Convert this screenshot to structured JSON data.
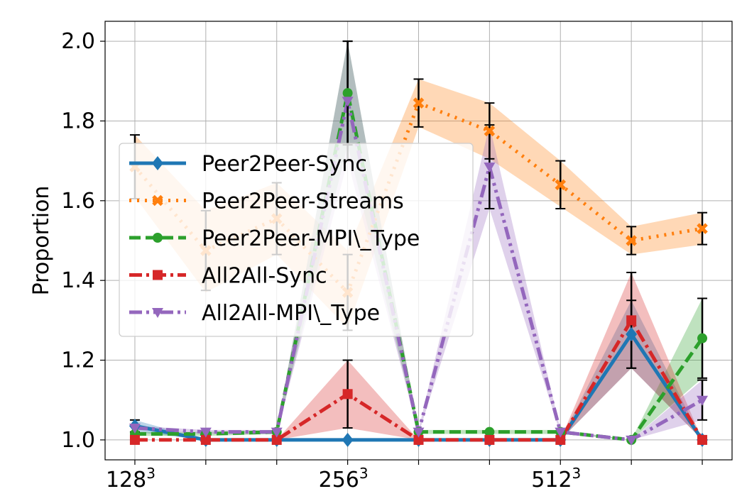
{
  "chart_data": {
    "type": "line",
    "ylabel": "Proportion",
    "xlabel": "",
    "ylim": [
      0.95,
      2.05
    ],
    "yticks": [
      1.0,
      1.2,
      1.4,
      1.6,
      1.8,
      2.0
    ],
    "grid": true,
    "legend_position": "upper-left",
    "x": [
      1,
      2,
      3,
      4,
      5,
      6,
      7,
      8,
      9
    ],
    "x_tick_labels": [
      {
        "x": 1,
        "base": "128",
        "exp": "3"
      },
      {
        "x": 2,
        "base": "",
        "exp": ""
      },
      {
        "x": 3,
        "base": "",
        "exp": ""
      },
      {
        "x": 4,
        "base": "256",
        "exp": "3"
      },
      {
        "x": 5,
        "base": "",
        "exp": ""
      },
      {
        "x": 6,
        "base": "",
        "exp": ""
      },
      {
        "x": 7,
        "base": "512",
        "exp": "3"
      },
      {
        "x": 8,
        "base": "",
        "exp": ""
      },
      {
        "x": 9,
        "base": "",
        "exp": ""
      }
    ],
    "series": [
      {
        "name": "Peer2Peer-Sync",
        "color": "#1f77b4",
        "marker": "diamond",
        "dash": "solid",
        "values": [
          1.035,
          1.0,
          1.0,
          1.0,
          1.0,
          1.0,
          1.0,
          1.265,
          1.0
        ],
        "band": [
          [
            1.02,
            1.05
          ],
          [
            1.0,
            1.0
          ],
          [
            1.0,
            1.0
          ],
          [
            1.0,
            1.0
          ],
          [
            1.0,
            1.0
          ],
          [
            1.0,
            1.0
          ],
          [
            1.0,
            1.0
          ],
          [
            1.18,
            1.35
          ],
          [
            1.0,
            1.0
          ]
        ],
        "err": [
          0.015,
          0,
          0,
          0,
          0,
          0,
          0,
          0.085,
          0
        ]
      },
      {
        "name": "Peer2Peer-Streams",
        "color": "#ff7f0e",
        "marker": "x",
        "dash": "dotted",
        "values": [
          1.685,
          1.475,
          1.555,
          1.37,
          1.845,
          1.775,
          1.64,
          1.5,
          1.53
        ],
        "band": [
          [
            1.61,
            1.765
          ],
          [
            1.37,
            1.575
          ],
          [
            1.465,
            1.645
          ],
          [
            1.28,
            1.475
          ],
          [
            1.785,
            1.905
          ],
          [
            1.705,
            1.845
          ],
          [
            1.585,
            1.7
          ],
          [
            1.465,
            1.535
          ],
          [
            1.49,
            1.57
          ]
        ],
        "err": [
          0.08,
          0.1,
          0.09,
          0.095,
          0.06,
          0.07,
          0.06,
          0.035,
          0.04
        ]
      },
      {
        "name": "Peer2Peer-MPI\\_Type",
        "color": "#2ca02c",
        "marker": "circle",
        "dash": "dashed",
        "values": [
          1.015,
          1.015,
          1.02,
          1.87,
          1.02,
          1.02,
          1.02,
          1.0,
          1.255
        ],
        "band": [
          [
            1.01,
            1.02
          ],
          [
            1.01,
            1.02
          ],
          [
            1.015,
            1.025
          ],
          [
            1.74,
            2.0
          ],
          [
            1.015,
            1.025
          ],
          [
            1.015,
            1.025
          ],
          [
            1.015,
            1.025
          ],
          [
            1.0,
            1.0
          ],
          [
            1.155,
            1.355
          ]
        ],
        "err": [
          0,
          0,
          0,
          0.13,
          0,
          0,
          0,
          0,
          0.1
        ]
      },
      {
        "name": "All2All-Sync",
        "color": "#d62728",
        "marker": "square",
        "dash": "dashdot",
        "values": [
          1.0,
          1.0,
          1.0,
          1.115,
          1.0,
          1.0,
          1.0,
          1.3,
          1.0
        ],
        "band": [
          [
            1.0,
            1.0
          ],
          [
            1.0,
            1.0
          ],
          [
            1.0,
            1.0
          ],
          [
            1.03,
            1.2
          ],
          [
            1.0,
            1.0
          ],
          [
            1.0,
            1.0
          ],
          [
            1.0,
            1.0
          ],
          [
            1.18,
            1.42
          ],
          [
            1.0,
            1.0
          ]
        ],
        "err": [
          0,
          0,
          0,
          0.085,
          0,
          0,
          0,
          0.12,
          0
        ]
      },
      {
        "name": "All2All-MPI\\_Type",
        "color": "#9467bd",
        "marker": "triangle-down",
        "dash": "dashdotdot",
        "values": [
          1.03,
          1.02,
          1.02,
          1.85,
          1.02,
          1.685,
          1.02,
          1.0,
          1.1
        ],
        "band": [
          [
            1.025,
            1.035
          ],
          [
            1.015,
            1.025
          ],
          [
            1.015,
            1.025
          ],
          [
            1.7,
            2.0
          ],
          [
            1.015,
            1.025
          ],
          [
            1.58,
            1.79
          ],
          [
            1.015,
            1.025
          ],
          [
            1.0,
            1.0
          ],
          [
            1.05,
            1.15
          ]
        ],
        "err": [
          0,
          0,
          0,
          0.15,
          0,
          0.105,
          0,
          0,
          0.05
        ]
      }
    ]
  }
}
